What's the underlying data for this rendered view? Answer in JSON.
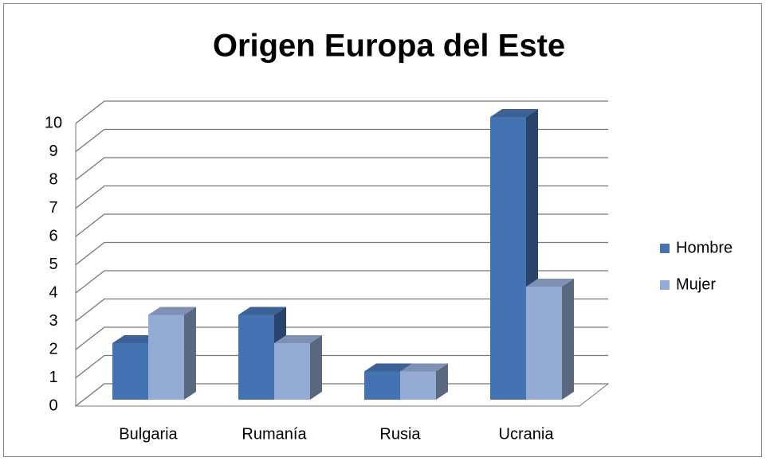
{
  "chart_data": {
    "type": "bar",
    "title": "Origen Europa del Este",
    "categories": [
      "Bulgaria",
      "Rumanía",
      "Rusia",
      "Ucrania"
    ],
    "series": [
      {
        "name": "Hombre",
        "color": "#4572b0",
        "values": [
          2,
          3,
          1,
          10
        ]
      },
      {
        "name": "Mujer",
        "color": "#94abd3",
        "values": [
          3,
          2,
          1,
          4
        ]
      }
    ],
    "ylim": [
      0,
      10
    ],
    "yticks": [
      0,
      1,
      2,
      3,
      4,
      5,
      6,
      7,
      8,
      9,
      10
    ],
    "grid": true,
    "legend": "right"
  }
}
